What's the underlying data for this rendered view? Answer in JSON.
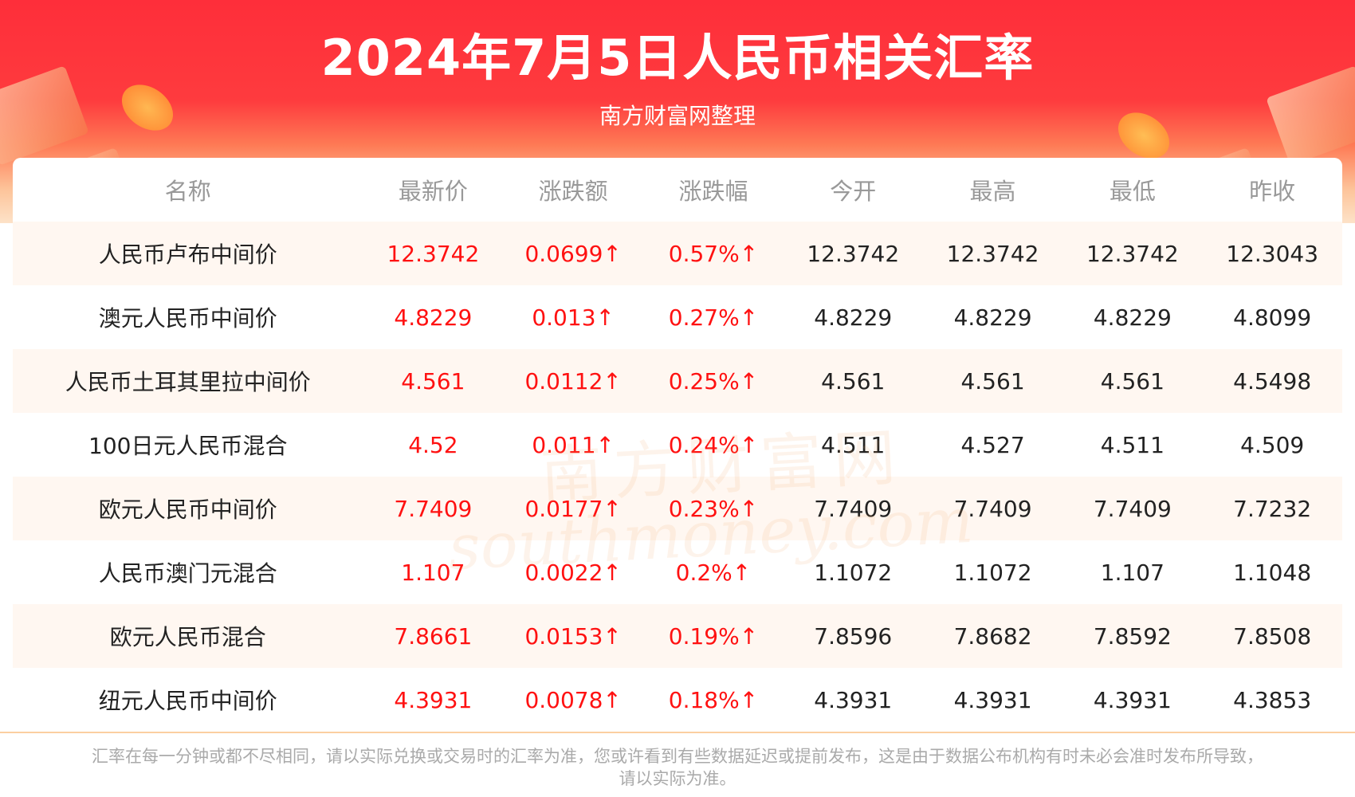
{
  "header": {
    "title": "2024年7月5日人民币相关汇率",
    "subtitle": "南方财富网整理"
  },
  "colors": {
    "banner": "#fe2e3a",
    "up": "#ff1111",
    "header_text": "#999999",
    "alt_row": "#fff7f1"
  },
  "table": {
    "columns": [
      "名称",
      "最新价",
      "涨跌额",
      "涨跌幅",
      "今开",
      "最高",
      "最低",
      "昨收"
    ],
    "rows": [
      [
        "人民币卢布中间价",
        "12.3742",
        "0.0699↑",
        "0.57%↑",
        "12.3742",
        "12.3742",
        "12.3742",
        "12.3043"
      ],
      [
        "澳元人民币中间价",
        "4.8229",
        "0.013↑",
        "0.27%↑",
        "4.8229",
        "4.8229",
        "4.8229",
        "4.8099"
      ],
      [
        "人民币土耳其里拉中间价",
        "4.561",
        "0.0112↑",
        "0.25%↑",
        "4.561",
        "4.561",
        "4.561",
        "4.5498"
      ],
      [
        "100日元人民币混合",
        "4.52",
        "0.011↑",
        "0.24%↑",
        "4.511",
        "4.527",
        "4.511",
        "4.509"
      ],
      [
        "欧元人民币中间价",
        "7.7409",
        "0.0177↑",
        "0.23%↑",
        "7.7409",
        "7.7409",
        "7.7409",
        "7.7232"
      ],
      [
        "人民币澳门元混合",
        "1.107",
        "0.0022↑",
        "0.2%↑",
        "1.1072",
        "1.1072",
        "1.107",
        "1.1048"
      ],
      [
        "欧元人民币混合",
        "7.8661",
        "0.0153↑",
        "0.19%↑",
        "7.8596",
        "7.8682",
        "7.8592",
        "7.8508"
      ],
      [
        "纽元人民币中间价",
        "4.3931",
        "0.0078↑",
        "0.18%↑",
        "4.3931",
        "4.3931",
        "4.3931",
        "4.3853"
      ]
    ]
  },
  "watermark": {
    "cn": "南方财富网",
    "en": "southmoney.com"
  },
  "footer": {
    "line1": "汇率在每一分钟或都不尽相同，请以实际兑换或交易时的汇率为准，您或许看到有些数据延迟或提前发布，这是由于数据公布机构有时未必会准时发布所导致，",
    "line2": "请以实际为准。"
  }
}
